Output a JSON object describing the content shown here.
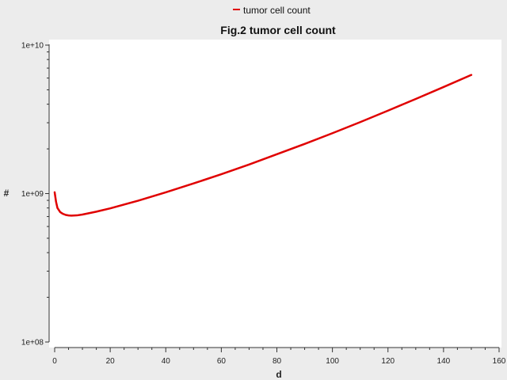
{
  "chart_data": {
    "type": "line",
    "title": "Fig.2 tumor cell count",
    "xlabel": "d",
    "ylabel": "#",
    "xlim": [
      0,
      160
    ],
    "ylim": [
      100000000,
      10000000000
    ],
    "y_scale": "log",
    "x_ticks": [
      0,
      20,
      40,
      60,
      80,
      100,
      120,
      140,
      160
    ],
    "x_tick_labels": [
      "0",
      "20",
      "40",
      "60",
      "80",
      "100",
      "120",
      "140",
      "160"
    ],
    "y_ticks": [
      100000000,
      1000000000,
      10000000000
    ],
    "y_tick_labels": [
      "1e+08",
      "1e+09",
      "1e+10"
    ],
    "grid": false,
    "legend": {
      "position": "top-center",
      "entries": [
        "tumor cell count"
      ]
    },
    "series": [
      {
        "name": "tumor cell count",
        "color": "#e00000",
        "x": [
          0,
          0.5,
          1,
          2,
          3,
          4,
          5,
          6,
          8,
          10,
          15,
          20,
          30,
          40,
          50,
          60,
          70,
          80,
          90,
          100,
          110,
          120,
          130,
          140,
          150
        ],
        "y": [
          1020000000,
          880000000,
          800000000,
          750000000,
          730000000,
          718000000,
          712000000,
          710000000,
          713000000,
          722000000,
          755000000,
          795000000,
          895000000,
          1020000000,
          1170000000,
          1350000000,
          1570000000,
          1840000000,
          2160000000,
          2550000000,
          3030000000,
          3620000000,
          4340000000,
          5220000000,
          6300000000
        ]
      }
    ]
  }
}
